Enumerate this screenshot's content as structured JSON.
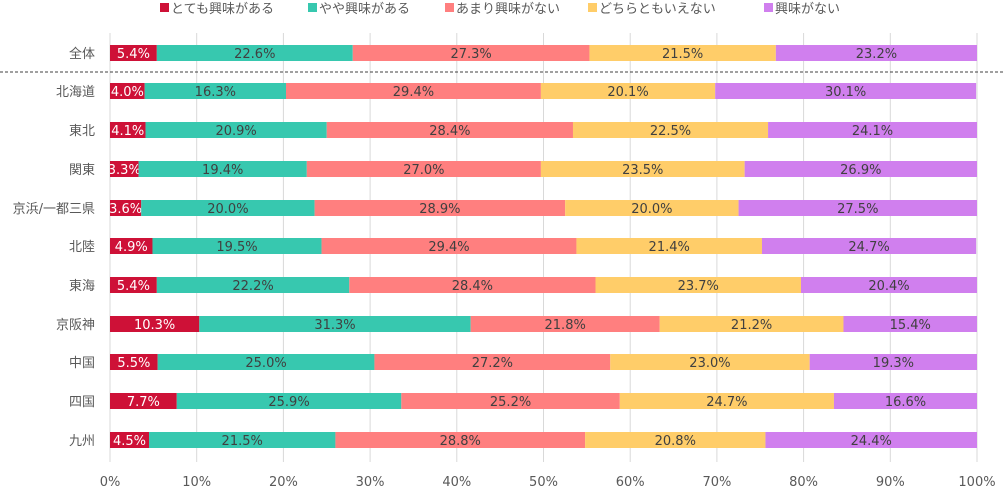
{
  "chart_data": {
    "type": "bar",
    "orientation": "horizontal",
    "stacked": true,
    "title": "",
    "xlabel": "",
    "ylabel": "",
    "xlim": [
      0,
      100
    ],
    "grid": true,
    "legend_position": "top",
    "x_ticks": [
      "0%",
      "10%",
      "20%",
      "30%",
      "40%",
      "50%",
      "60%",
      "70%",
      "80%",
      "90%",
      "100%"
    ],
    "categories": [
      "全体",
      "北海道",
      "東北",
      "関東",
      "京浜/一都三県",
      "北陸",
      "東海",
      "京阪神",
      "中国",
      "四国",
      "九州"
    ],
    "series": [
      {
        "name": "とても興味がある",
        "color": "#CE1137",
        "label_color": "#FFFFFF",
        "values": [
          5.4,
          4.0,
          4.1,
          3.3,
          3.6,
          4.9,
          5.4,
          10.3,
          5.5,
          7.7,
          4.5
        ]
      },
      {
        "name": "やや興味がある",
        "color": "#37C8AF",
        "label_color": "#404040",
        "values": [
          22.6,
          16.3,
          20.9,
          19.4,
          20.0,
          19.5,
          22.2,
          31.3,
          25.0,
          25.9,
          21.5
        ]
      },
      {
        "name": "あまり興味がない",
        "color": "#FF7F7F",
        "label_color": "#404040",
        "values": [
          27.3,
          29.4,
          28.4,
          27.0,
          28.9,
          29.4,
          28.4,
          21.8,
          27.2,
          25.2,
          28.8
        ]
      },
      {
        "name": "どちらともいえない",
        "color": "#FFCD69",
        "label_color": "#404040",
        "values": [
          21.5,
          20.1,
          22.5,
          23.5,
          20.0,
          21.4,
          23.7,
          21.2,
          23.0,
          24.7,
          20.8
        ]
      },
      {
        "name": "興味がない",
        "color": "#D07FEE",
        "label_color": "#404040",
        "values": [
          23.2,
          30.1,
          24.1,
          26.9,
          27.5,
          24.7,
          20.4,
          15.4,
          19.3,
          16.6,
          24.4
        ]
      }
    ]
  }
}
